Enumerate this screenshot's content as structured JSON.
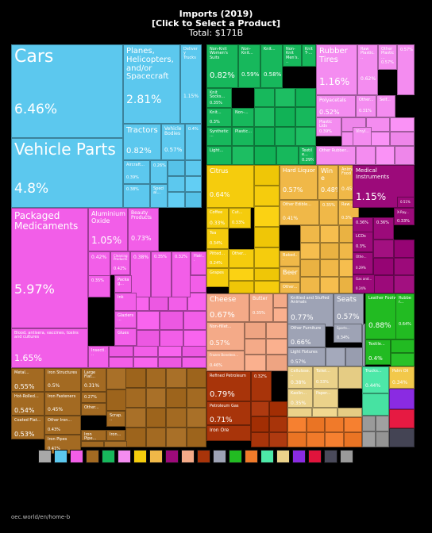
{
  "header": {
    "title": "Imports (2019)",
    "subtitle": "[Click to Select a Product]",
    "total": "Total: $171B"
  },
  "footer": {
    "url": "oec.world/en/home-b"
  },
  "chart_data": {
    "type": "treemap",
    "title": "Imports (2019)",
    "subtitle": "[Click to Select a Product]",
    "total": "Total: $171B",
    "tiles": [
      {
        "id": "cars",
        "label": "Cars",
        "value": "6.46%",
        "color": "#5cc8ee"
      },
      {
        "id": "vehicle-parts",
        "label": "Vehicle Parts",
        "value": "4.8%",
        "color": "#5cc8ee"
      },
      {
        "id": "planes",
        "label": "Planes, Helicopters, and/or Spacecraft",
        "value": "2.81%",
        "color": "#5cc8ee"
      },
      {
        "id": "delivery-trucks",
        "label": "Delivery Trucks",
        "value": "1.15%",
        "color": "#5cc8ee"
      },
      {
        "id": "tractors",
        "label": "Tractors",
        "value": "0.82%",
        "color": "#5cc8ee"
      },
      {
        "id": "vehicle-bodies",
        "label": "Vehicle Bodies",
        "value": "0.57%",
        "color": "#5cc8ee"
      },
      {
        "id": "vehicles-small-1",
        "label": "",
        "value": "0.4%",
        "color": "#5cc8ee"
      },
      {
        "id": "aircraft",
        "label": "Aircraft...",
        "value": "0.39%",
        "color": "#5cc8ee"
      },
      {
        "id": "vehicles-small-2",
        "label": "",
        "value": "0.26%",
        "color": "#5cc8ee"
      },
      {
        "id": "special",
        "label": "Special...",
        "value": "",
        "color": "#5cc8ee"
      },
      {
        "id": "vehicles-small-3",
        "label": "",
        "value": "0.38%",
        "color": "#5cc8ee"
      },
      {
        "id": "packaged-medicaments",
        "label": "Packaged Medicaments",
        "value": "5.97%",
        "color": "#f25ee8"
      },
      {
        "id": "blood",
        "label": "Blood, antisera, vaccines, toxins and cultures",
        "value": "1.65%",
        "color": "#f25ee8"
      },
      {
        "id": "aluminium-oxide",
        "label": "Aluminium Oxide",
        "value": "1.05%",
        "color": "#f25ee8"
      },
      {
        "id": "beauty-products",
        "label": "Beauty Products",
        "value": "0.73%",
        "color": "#f25ee8"
      },
      {
        "id": "chem-small-1",
        "label": "",
        "value": "0.42%",
        "color": "#f25ee8"
      },
      {
        "id": "cleaning-products",
        "label": "Cleaning Products",
        "value": "0.42%",
        "color": "#f25ee8"
      },
      {
        "id": "chem-small-2",
        "label": "",
        "value": "0.38%",
        "color": "#f25ee8"
      },
      {
        "id": "chem-small-3",
        "label": "",
        "value": "0.35%",
        "color": "#f25ee8"
      },
      {
        "id": "chem-small-4",
        "label": "",
        "value": "0.32%",
        "color": "#f25ee8"
      },
      {
        "id": "hair",
        "label": "Hair...",
        "value": "",
        "color": "#f25ee8"
      },
      {
        "id": "chem-small-5",
        "label": "",
        "value": "0.35%",
        "color": "#f25ee8"
      },
      {
        "id": "packaging",
        "label": "Packag...",
        "value": "",
        "color": "#f25ee8"
      },
      {
        "id": "ink",
        "label": "Ink",
        "value": "",
        "color": "#f25ee8"
      },
      {
        "id": "glaziers",
        "label": "Glaziers...",
        "value": "",
        "color": "#f25ee8"
      },
      {
        "id": "glues",
        "label": "Glues",
        "value": "",
        "color": "#f25ee8"
      },
      {
        "id": "insecticides",
        "label": "Insecti...",
        "value": "",
        "color": "#f25ee8"
      },
      {
        "id": "non-knit-womens-suits",
        "label": "Non-Knit Women's Suits",
        "value": "0.82%",
        "color": "#17b85c"
      },
      {
        "id": "non-knit-2",
        "label": "Non-Knit...",
        "value": "0.59%",
        "color": "#17b85c"
      },
      {
        "id": "knit-3",
        "label": "Knit...",
        "value": "0.58%",
        "color": "#17b85c"
      },
      {
        "id": "non-knit-mens",
        "label": "Non-Knit Men's...",
        "value": "",
        "color": "#17b85c"
      },
      {
        "id": "knit-t",
        "label": "Knit T-...",
        "value": "",
        "color": "#17b85c"
      },
      {
        "id": "knit-socks",
        "label": "Knit Socks...",
        "value": "0.35%",
        "color": "#17b85c"
      },
      {
        "id": "knit-2",
        "label": "Knit...",
        "value": "0.3%",
        "color": "#17b85c"
      },
      {
        "id": "synthetic",
        "label": "Synthetic...",
        "value": "",
        "color": "#17b85c"
      },
      {
        "id": "light",
        "label": "Light...",
        "value": "",
        "color": "#17b85c"
      },
      {
        "id": "plastic",
        "label": "Plastic...",
        "value": "",
        "color": "#17b85c"
      },
      {
        "id": "non-5",
        "label": "Non-...",
        "value": "",
        "color": "#17b85c"
      },
      {
        "id": "textile",
        "label": "Textile...",
        "value": "0.29%",
        "color": "#17b85c"
      },
      {
        "id": "rubber-tires",
        "label": "Rubber Tires",
        "value": "1.16%",
        "color": "#f48cf0"
      },
      {
        "id": "raw-plastic",
        "label": "Raw Plastic...",
        "value": "0.62%",
        "color": "#f48cf0"
      },
      {
        "id": "other-plastic",
        "label": "Other Plastic...",
        "value": "0.57%",
        "color": "#f48cf0"
      },
      {
        "id": "plastic-small",
        "label": "",
        "value": "0.57%",
        "color": "#f48cf0"
      },
      {
        "id": "polyacetals",
        "label": "Polyacetals",
        "value": "0.52%",
        "color": "#f48cf0"
      },
      {
        "id": "other-pl",
        "label": "Other...",
        "value": "0.31%",
        "color": "#f48cf0"
      },
      {
        "id": "self",
        "label": "Self...",
        "value": "",
        "color": "#f48cf0"
      },
      {
        "id": "plastic-lids",
        "label": "Plastic Lids",
        "value": "0.39%",
        "color": "#f48cf0"
      },
      {
        "id": "vinyl",
        "label": "Vinyl...",
        "value": "",
        "color": "#f48cf0"
      },
      {
        "id": "other-rubber",
        "label": "Other Rubber...",
        "value": "",
        "color": "#f48cf0"
      },
      {
        "id": "citrus",
        "label": "Citrus",
        "value": "0.64%",
        "color": "#f5cc0d"
      },
      {
        "id": "coffee",
        "label": "Coffee",
        "value": "0.33%",
        "color": "#f5cc0d"
      },
      {
        "id": "cut",
        "label": "Cut...",
        "value": "0.33%",
        "color": "#f5cc0d"
      },
      {
        "id": "tea",
        "label": "Tea",
        "value": "0.34%",
        "color": "#f5cc0d"
      },
      {
        "id": "pitted",
        "label": "Pitted...",
        "value": "0.24%",
        "color": "#f5cc0d"
      },
      {
        "id": "other-veg",
        "label": "Other...",
        "value": "",
        "color": "#f5cc0d"
      },
      {
        "id": "grapes",
        "label": "Grapes",
        "value": "",
        "color": "#f5cc0d"
      },
      {
        "id": "hard-liquor",
        "label": "Hard Liquor",
        "value": "0.57%",
        "color": "#f0b848"
      },
      {
        "id": "wine",
        "label": "Wine",
        "value": "0.48%",
        "color": "#f0b848"
      },
      {
        "id": "animal-food",
        "label": "Animal Food",
        "value": "0.45%",
        "color": "#f0b848"
      },
      {
        "id": "other-edible",
        "label": "Other Edible...",
        "value": "0.41%",
        "color": "#f0b848"
      },
      {
        "id": "foods-small",
        "label": "",
        "value": "0.35%",
        "color": "#f0b848"
      },
      {
        "id": "raw",
        "label": "Raw...",
        "value": "0.3%",
        "color": "#f0b848"
      },
      {
        "id": "baked",
        "label": "Baked...",
        "value": "",
        "color": "#f0b848"
      },
      {
        "id": "beer",
        "label": "Beer",
        "value": "",
        "color": "#f0b848"
      },
      {
        "id": "other-food",
        "label": "Other...",
        "value": "",
        "color": "#f0b848"
      },
      {
        "id": "medical-instruments",
        "label": "Medical Instruments",
        "value": "1.15%",
        "color": "#9c0a7a"
      },
      {
        "id": "instr-small-1",
        "label": "",
        "value": "0.51%",
        "color": "#9c0a7a"
      },
      {
        "id": "x-ray",
        "label": "X-Ray...",
        "value": "0.33%",
        "color": "#9c0a7a"
      },
      {
        "id": "instr-small-2",
        "label": "",
        "value": "0.36%",
        "color": "#9c0a7a"
      },
      {
        "id": "instr-small-3",
        "label": "",
        "value": "0.36%",
        "color": "#9c0a7a"
      },
      {
        "id": "lcds",
        "label": "LCDs",
        "value": "0.3%",
        "color": "#9c0a7a"
      },
      {
        "id": "other-instr",
        "label": "Othe...",
        "value": "0.29%",
        "color": "#9c0a7a"
      },
      {
        "id": "gas-and",
        "label": "Gas and...",
        "value": "0.24%",
        "color": "#9c0a7a"
      },
      {
        "id": "cheese",
        "label": "Cheese",
        "value": "0.67%",
        "color": "#f4aa88"
      },
      {
        "id": "butter",
        "label": "Butter",
        "value": "0.35%",
        "color": "#f4aa88"
      },
      {
        "id": "non-fillet",
        "label": "Non-fillet...",
        "value": "0.57%",
        "color": "#f4aa88"
      },
      {
        "id": "frozen-boneless",
        "label": "Frozen Boneless...",
        "value": "0.46%",
        "color": "#f4aa88"
      },
      {
        "id": "knitted-stuffed",
        "label": "Knitted and Stuffed Animals",
        "value": "0.77%",
        "color": "#9ea3b5"
      },
      {
        "id": "seats",
        "label": "Seats",
        "value": "0.57%",
        "color": "#9ea3b5"
      },
      {
        "id": "other-furniture",
        "label": "Other Furniture",
        "value": "0.66%",
        "color": "#9ea3b5"
      },
      {
        "id": "sports",
        "label": "Sports...",
        "value": "0.34%",
        "color": "#9ea3b5"
      },
      {
        "id": "light-fixtures",
        "label": "Light Fixtures",
        "value": "0.57%",
        "color": "#9ea3b5"
      },
      {
        "id": "leather-footwear",
        "label": "Leather Footwear",
        "value": "0.88%",
        "color": "#22bb22"
      },
      {
        "id": "rubber-footwear",
        "label": "Rubber...",
        "value": "0.64%",
        "color": "#22bb22"
      },
      {
        "id": "textile-footwear",
        "label": "Textile...",
        "value": "0.4%",
        "color": "#22bb22"
      },
      {
        "id": "metal",
        "label": "Metal...",
        "value": "0.55%",
        "color": "#a36a22"
      },
      {
        "id": "iron-structures",
        "label": "Iron Structures",
        "value": "0.5%",
        "color": "#a36a22"
      },
      {
        "id": "large-flat",
        "label": "Large Flat...",
        "value": "0.31%",
        "color": "#a36a22"
      },
      {
        "id": "hot-rolled",
        "label": "Hot-Rolled...",
        "value": "0.54%",
        "color": "#a36a22"
      },
      {
        "id": "iron-fasteners",
        "label": "Iron Fasteners",
        "value": "0.45%",
        "color": "#a36a22"
      },
      {
        "id": "metals-small",
        "label": "",
        "value": "0.27%",
        "color": "#a36a22"
      },
      {
        "id": "other-metal",
        "label": "Other...",
        "value": "",
        "color": "#a36a22"
      },
      {
        "id": "other-iron",
        "label": "Other Iron...",
        "value": "0.43%",
        "color": "#a36a22"
      },
      {
        "id": "coated-flat",
        "label": "Coated Flat...",
        "value": "0.53%",
        "color": "#a36a22"
      },
      {
        "id": "scrap",
        "label": "Scrap...",
        "value": "",
        "color": "#a36a22"
      },
      {
        "id": "iron-pipes",
        "label": "Iron Pipes",
        "value": "0.41%",
        "color": "#a36a22"
      },
      {
        "id": "iron-pipe-2",
        "label": "Iron Pipe...",
        "value": "",
        "color": "#a36a22"
      },
      {
        "id": "iron-x",
        "label": "Iron...",
        "value": "",
        "color": "#a36a22"
      },
      {
        "id": "refined-petroleum",
        "label": "Refined Petroleum",
        "value": "0.79%",
        "color": "#a8340a"
      },
      {
        "id": "energy-small",
        "label": "",
        "value": "0.32%",
        "color": "#a8340a"
      },
      {
        "id": "petroleum-gas",
        "label": "Petroleum Gas",
        "value": "0.71%",
        "color": "#a8340a"
      },
      {
        "id": "iron-ore",
        "label": "Iron Ore",
        "value": "",
        "color": "#a8340a"
      },
      {
        "id": "cellulose",
        "label": "Cellulose...",
        "value": "0.38%",
        "color": "#ebd28a"
      },
      {
        "id": "toilet",
        "label": "Toilet...",
        "value": "0.33%",
        "color": "#ebd28a"
      },
      {
        "id": "kaolin",
        "label": "Kaolin...",
        "value": "0.35%",
        "color": "#ebd28a"
      },
      {
        "id": "paper",
        "label": "Paper...",
        "value": "",
        "color": "#ebd28a"
      },
      {
        "id": "trucks-anim",
        "label": "Trucks...",
        "value": "0.44%",
        "color": "#4de8a8"
      },
      {
        "id": "palm-oil",
        "label": "Palm Oil",
        "value": "0.34%",
        "color": "#f2c84a"
      }
    ],
    "legend": [
      "#a8a8a8",
      "#5cc8ee",
      "#f25ee8",
      "#a36a22",
      "#17b85c",
      "#f48cf0",
      "#f5cc0d",
      "#f0b848",
      "#9c0a7a",
      "#f4aa88",
      "#a8340a",
      "#9ea3b5",
      "#22bb22",
      "#f07a2a",
      "#4de8a8",
      "#ebd28a",
      "#8a2be2",
      "#e0143c",
      "#4a4a5a",
      "#9a9a9a"
    ]
  }
}
